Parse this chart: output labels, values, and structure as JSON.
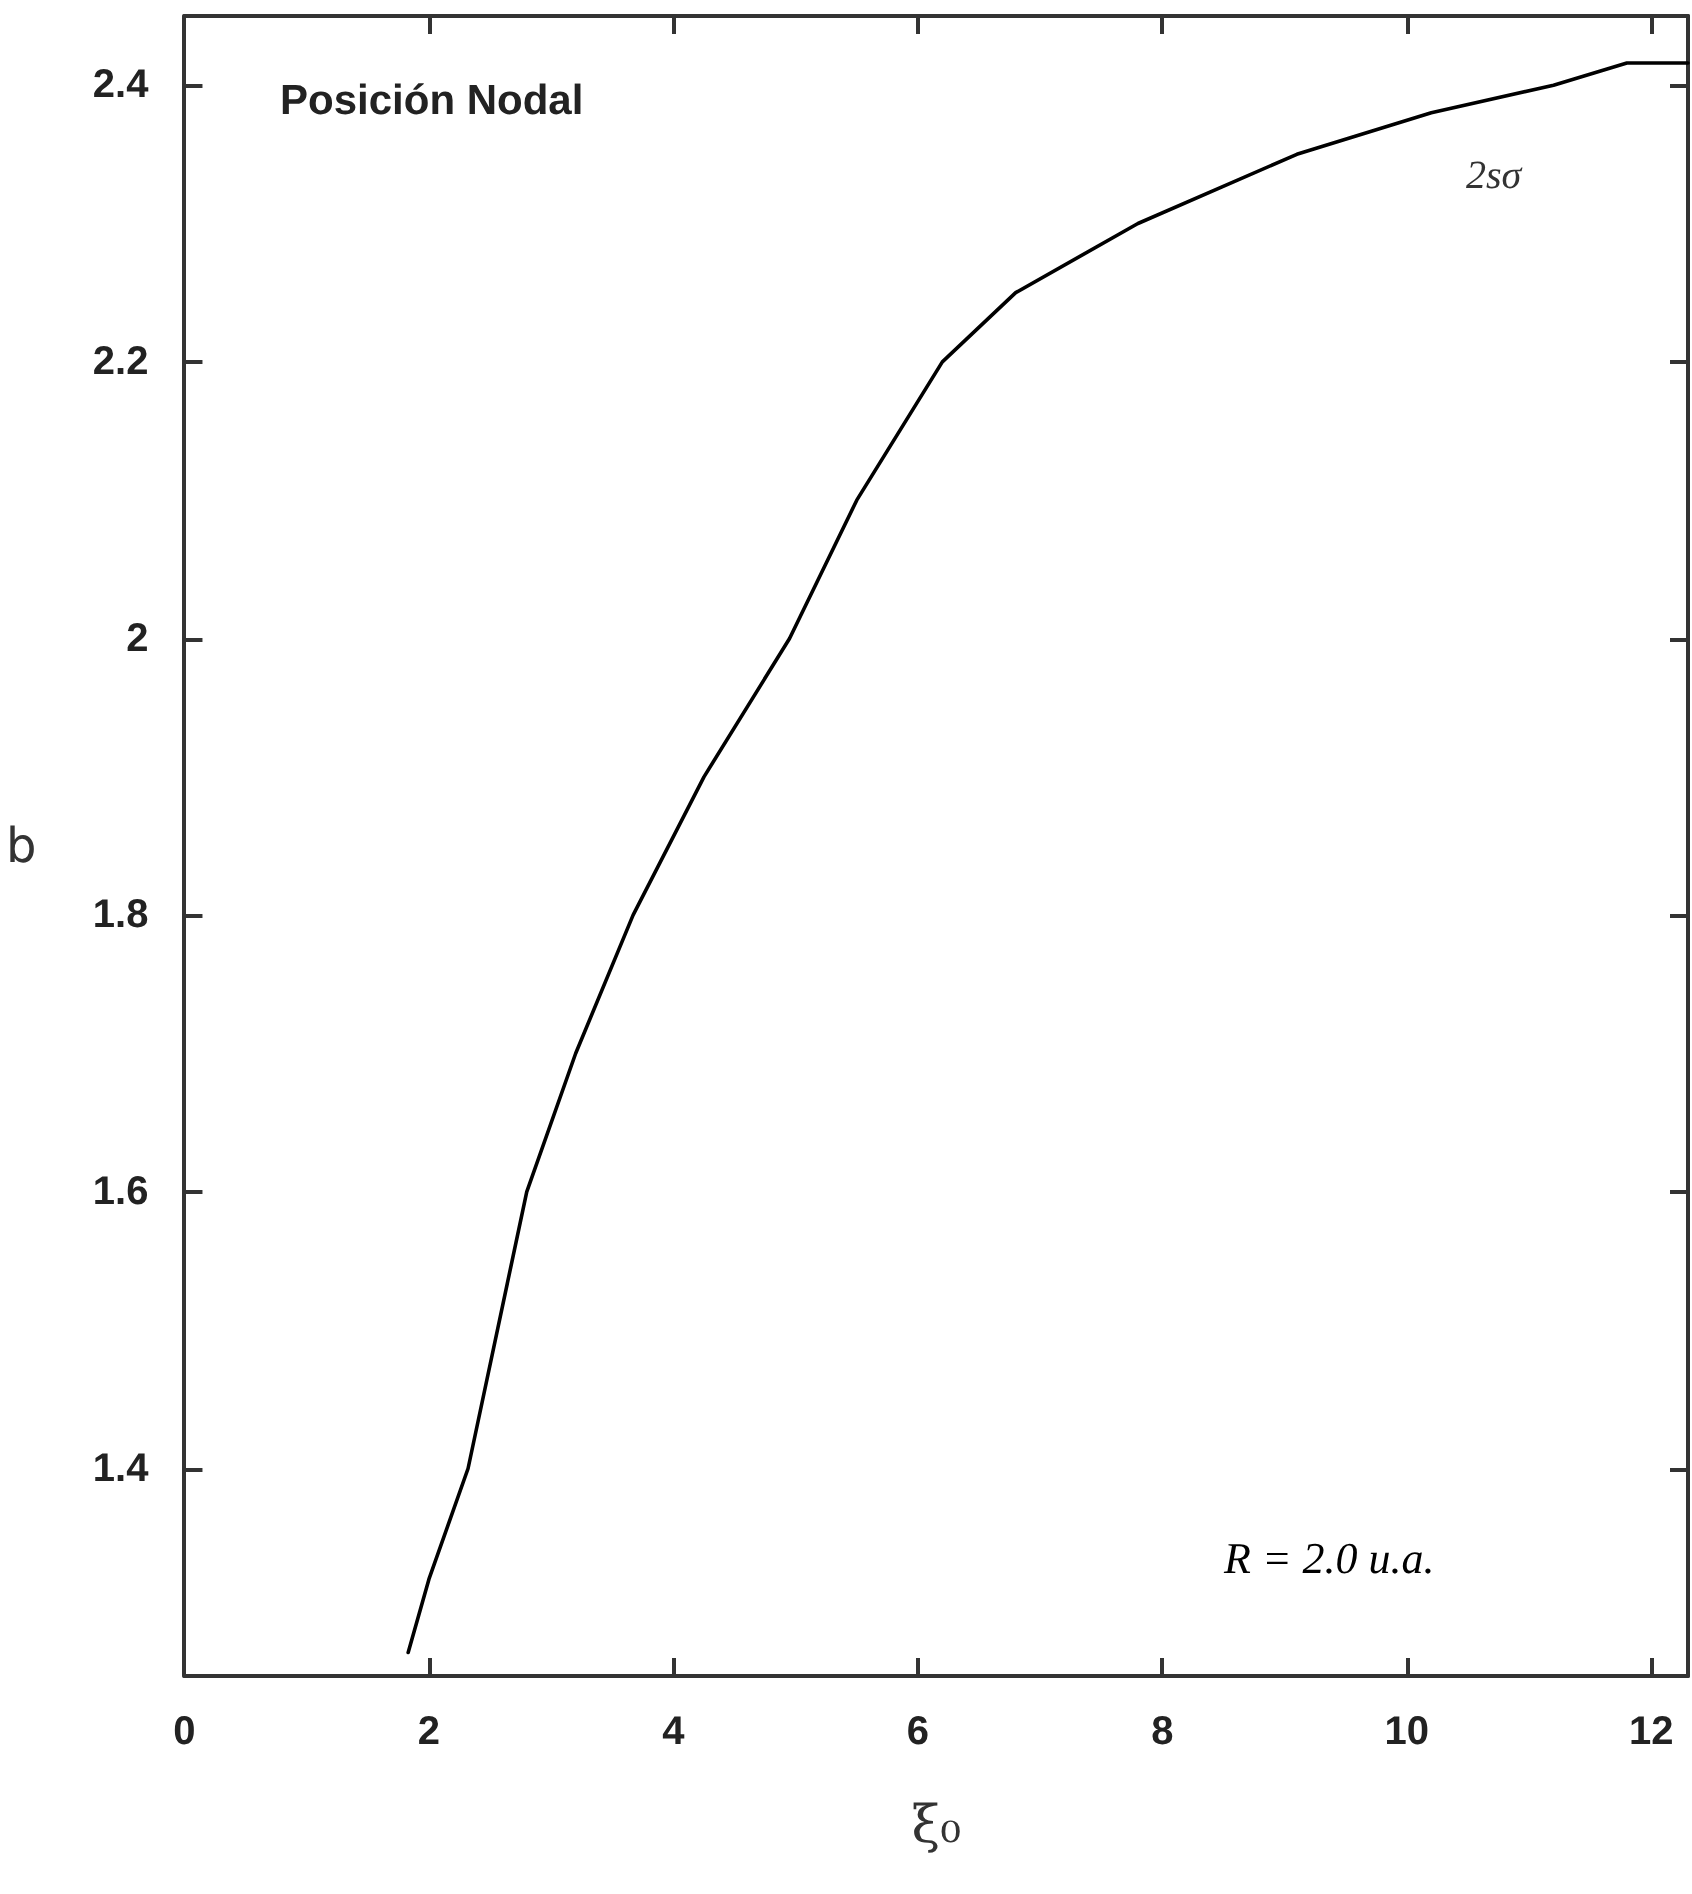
{
  "chart_data": {
    "type": "line",
    "xlabel": "ξ₀",
    "ylabel": "b",
    "annotations": [
      "Posición Nodal",
      "2sσ",
      "R = 2.0 u.a."
    ],
    "series": [
      {
        "color": "#000000",
        "x": [
          1.83,
          2.0,
          2.32,
          2.8,
          3.2,
          3.67,
          4.25,
          4.95,
          5.5,
          6.2,
          6.8,
          7.8,
          9.1,
          10.2,
          11.2,
          11.8,
          12.3
        ],
        "values": [
          1.267,
          1.32,
          1.4,
          1.6,
          1.7,
          1.8,
          1.9,
          2.0,
          2.1,
          2.2,
          2.25,
          2.3,
          2.35,
          2.38,
          2.4,
          2.416,
          2.416
        ]
      }
    ],
    "xlim": [
      0,
      12.3
    ],
    "xticks": [
      0,
      2,
      4,
      6,
      8,
      10,
      12
    ],
    "ylim": [
      1.25,
      2.45
    ],
    "yticks": [
      1.4,
      1.6,
      1.8,
      2,
      2.2,
      2.4
    ],
    "grid": false,
    "marker": "none",
    "line_style": "solid"
  }
}
